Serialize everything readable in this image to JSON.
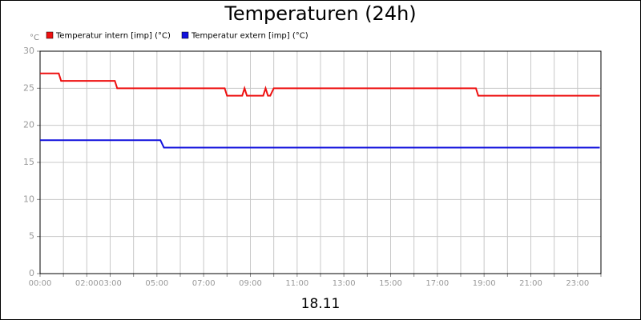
{
  "chart_data": {
    "type": "line",
    "title": "Temperaturen (24h)",
    "y_unit": "°C",
    "x_label": "18.11",
    "xlim": [
      0,
      24
    ],
    "xticks": [
      {
        "value": 0,
        "label": "00:00"
      },
      {
        "value": 1,
        "label": null
      },
      {
        "value": 2,
        "label": "02:00"
      },
      {
        "value": 3,
        "label": "03:00"
      },
      {
        "value": 4,
        "label": null
      },
      {
        "value": 5,
        "label": "05:00"
      },
      {
        "value": 6,
        "label": null
      },
      {
        "value": 7,
        "label": "07:00"
      },
      {
        "value": 8,
        "label": null
      },
      {
        "value": 9,
        "label": "09:00"
      },
      {
        "value": 10,
        "label": null
      },
      {
        "value": 11,
        "label": "11:00"
      },
      {
        "value": 12,
        "label": null
      },
      {
        "value": 13,
        "label": "13:00"
      },
      {
        "value": 14,
        "label": null
      },
      {
        "value": 15,
        "label": "15:00"
      },
      {
        "value": 16,
        "label": null
      },
      {
        "value": 17,
        "label": "17:00"
      },
      {
        "value": 18,
        "label": null
      },
      {
        "value": 19,
        "label": "19:00"
      },
      {
        "value": 20,
        "label": null
      },
      {
        "value": 21,
        "label": "21:00"
      },
      {
        "value": 22,
        "label": null
      },
      {
        "value": 23,
        "label": "23:00"
      },
      {
        "value": 24,
        "label": null
      }
    ],
    "ylim": [
      0,
      30
    ],
    "yticks": [
      0,
      5,
      10,
      15,
      20,
      25,
      30
    ],
    "grid": true,
    "series": [
      {
        "name": "Temperatur intern [imp] (°C)",
        "color": "#ee1111",
        "x": [
          0,
          0.8,
          0.9,
          3.2,
          3.3,
          7.9,
          8.0,
          8.65,
          8.75,
          8.85,
          9.55,
          9.65,
          9.75,
          9.85,
          10.0,
          18.65,
          18.75,
          23.95
        ],
        "values": [
          27,
          27,
          26,
          26,
          25,
          25,
          24,
          24,
          25,
          24,
          24,
          25,
          24,
          24,
          25,
          25,
          24,
          24
        ]
      },
      {
        "name": "Temperatur extern [imp] (°C)",
        "color": "#1111dd",
        "x": [
          0,
          5.15,
          5.3,
          23.95
        ],
        "values": [
          18,
          18,
          17,
          17
        ]
      }
    ]
  }
}
